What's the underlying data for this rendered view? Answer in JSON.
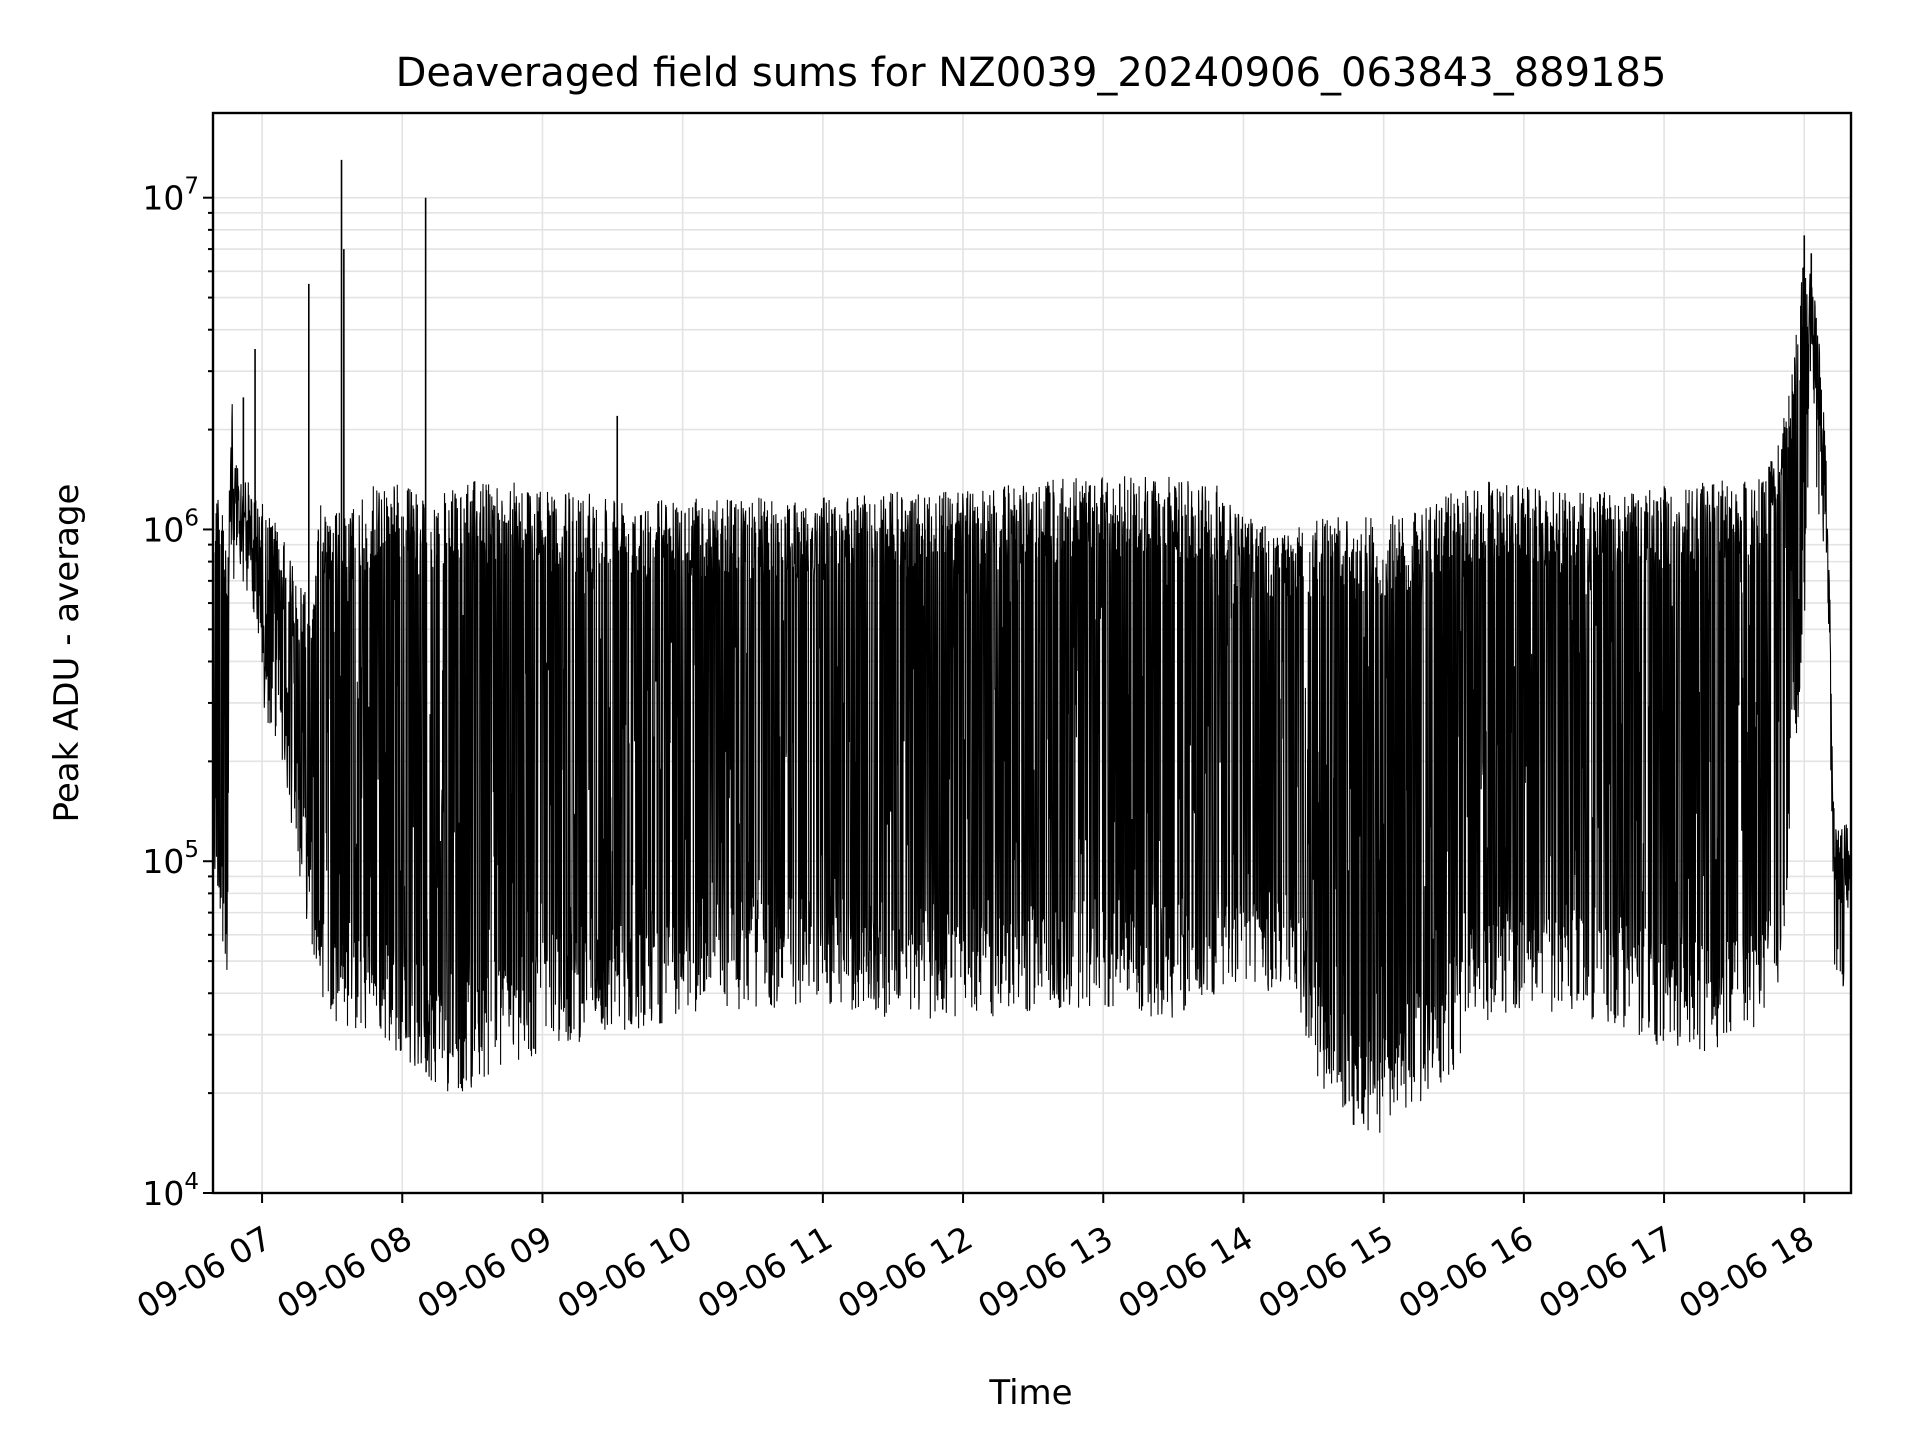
{
  "chart_data": {
    "type": "line",
    "title": "Deaveraged field sums for NZ0039_20240906_063843_889185",
    "xlabel": "Time",
    "ylabel": "Peak ADU - average",
    "yscale": "log",
    "ylim": [
      10000,
      18000000
    ],
    "xlim": [
      "2024-09-06 06:39",
      "2024-09-06 18:20"
    ],
    "grid": true,
    "line_color": "#000000",
    "x_ticks": [
      "09-06 07",
      "09-06 08",
      "09-06 09",
      "09-06 10",
      "09-06 11",
      "09-06 12",
      "09-06 13",
      "09-06 14",
      "09-06 15",
      "09-06 16",
      "09-06 17",
      "09-06 18"
    ],
    "y_ticks": [
      {
        "value": 10000,
        "base": "10",
        "exp": "4"
      },
      {
        "value": 100000,
        "base": "10",
        "exp": "5"
      },
      {
        "value": 1000000,
        "base": "10",
        "exp": "6"
      },
      {
        "value": 10000000,
        "base": "10",
        "exp": "7"
      }
    ],
    "series": [
      {
        "x": [
          "06:39",
          "06:41",
          "06:43",
          "06:45",
          "06:47",
          "06:50",
          "06:55",
          "07:00",
          "07:05",
          "07:10",
          "07:15",
          "07:20",
          "07:25",
          "07:30",
          "07:35",
          "07:40",
          "07:45",
          "07:50",
          "07:55",
          "08:00",
          "08:05",
          "08:10",
          "08:20",
          "08:30",
          "08:40",
          "08:50",
          "09:00",
          "09:30",
          "10:00",
          "10:30",
          "11:00",
          "11:30",
          "12:00",
          "12:30",
          "13:00",
          "13:30",
          "13:50",
          "14:00",
          "14:10",
          "14:20",
          "14:30",
          "14:40",
          "14:50",
          "15:00",
          "15:10",
          "15:20",
          "15:30",
          "15:40",
          "15:50",
          "16:00",
          "16:20",
          "16:40",
          "17:00",
          "17:20",
          "17:40",
          "17:50",
          "17:55",
          "18:00",
          "18:03",
          "18:06",
          "18:10",
          "18:13",
          "18:16",
          "18:20"
        ],
        "values": [
          130000,
          110000,
          90000,
          50000,
          900000,
          1100000,
          900000,
          400000,
          350000,
          250000,
          150000,
          90000,
          60000,
          50000,
          48000,
          45000,
          45000,
          45000,
          40000,
          40000,
          35000,
          33000,
          30000,
          30000,
          35000,
          35000,
          40000,
          45000,
          50000,
          52000,
          55000,
          50000,
          50000,
          52000,
          52000,
          50000,
          60000,
          60000,
          60000,
          65000,
          35000,
          25000,
          22000,
          22000,
          25000,
          30000,
          35000,
          45000,
          50000,
          55000,
          50000,
          48000,
          40000,
          40000,
          45000,
          60000,
          250000,
          700000,
          4500000,
          1500000,
          700000,
          60000,
          60000,
          80000
        ],
        "upper": [
          1400000,
          1500000,
          1200000,
          900000,
          2500000,
          1400000,
          1300000,
          1200000,
          1100000,
          900000,
          800000,
          600000,
          1200000,
          1200000,
          1100000,
          1200000,
          1300000,
          1400000,
          1400000,
          1400000,
          1300000,
          1300000,
          1300000,
          1400000,
          1400000,
          1400000,
          1300000,
          1300000,
          1250000,
          1250000,
          1250000,
          1300000,
          1300000,
          1400000,
          1450000,
          1450000,
          1400000,
          1100000,
          1100000,
          1000000,
          1100000,
          1100000,
          1100000,
          1100000,
          1150000,
          1200000,
          1300000,
          1400000,
          1400000,
          1350000,
          1300000,
          1300000,
          1350000,
          1400000,
          1500000,
          2000000,
          3000000,
          7000000,
          6000000,
          4000000,
          1500000,
          130000,
          130000,
          130000
        ],
        "spikes": [
          {
            "x": "07:20",
            "value": 5500000
          },
          {
            "x": "07:34",
            "value": 13000000
          },
          {
            "x": "07:35",
            "value": 7000000
          },
          {
            "x": "08:10",
            "value": 10000000
          },
          {
            "x": "06:57",
            "value": 3500000
          },
          {
            "x": "06:52",
            "value": 2500000
          },
          {
            "x": "09:32",
            "value": 2200000
          },
          {
            "x": "18:00",
            "value": 7700000
          },
          {
            "x": "18:03",
            "value": 6800000
          }
        ]
      }
    ]
  }
}
